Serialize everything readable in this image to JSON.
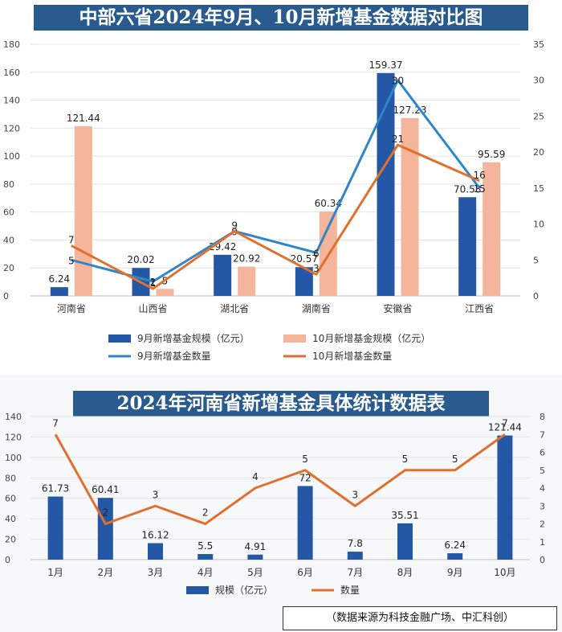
{
  "title1": "中部六省2024年9月、10月新增基金数据对比图",
  "title2": "2024年河南省新增基金具体统计数据表",
  "source_note": "（数据来源为科技金融广场、中汇科创）",
  "colors": {
    "bar_sep": "#2458a6",
    "bar_oct": "#f4b59a",
    "line_sep": "#2e86c8",
    "line_oct": "#e0702f",
    "title_bg": "#2a5b8f"
  },
  "chart_data": [
    {
      "type": "bar",
      "title": "中部六省2024年9月、10月新增基金数据对比图",
      "categories": [
        "河南省",
        "山西省",
        "湖北省",
        "湖南省",
        "安徽省",
        "江西省"
      ],
      "y_ticks": [
        "0",
        "20",
        "40",
        "60",
        "80",
        "100",
        "120",
        "140",
        "160",
        "180"
      ],
      "y2_ticks": [
        "0",
        "5",
        "10",
        "15",
        "20",
        "25",
        "30",
        "35"
      ],
      "ylim": [
        0,
        180
      ],
      "y2lim": [
        0,
        35
      ],
      "series": [
        {
          "name": "9月新增基金规模（亿元）",
          "kind": "bar",
          "axis": "left",
          "values": [
            6.24,
            20.02,
            29.42,
            20.57,
            159.37,
            70.58
          ],
          "labels": [
            "6.24",
            "20.02",
            "29.42",
            "20.57",
            "159.37",
            "70.58"
          ]
        },
        {
          "name": "10月新增基金规模（亿元）",
          "kind": "bar",
          "axis": "left",
          "values": [
            121.44,
            5,
            20.92,
            60.34,
            127.23,
            95.59
          ],
          "labels": [
            "121.44",
            "5",
            "20.92",
            "60.34",
            "127.23",
            "95.59"
          ]
        },
        {
          "name": "9月新增基金数量",
          "kind": "line",
          "axis": "right",
          "values": [
            5,
            2,
            9,
            6,
            30,
            15
          ],
          "labels": [
            "5",
            "2",
            "9",
            "6",
            "30",
            "15"
          ]
        },
        {
          "name": "10月新增基金数量",
          "kind": "line",
          "axis": "right",
          "values": [
            7,
            1,
            9,
            3,
            21,
            16
          ],
          "labels": [
            "7",
            "1",
            "9",
            "3",
            "21",
            "16"
          ]
        }
      ],
      "legend_placement": "bottom"
    },
    {
      "type": "bar",
      "title": "2024年河南省新增基金具体统计数据表",
      "categories": [
        "1月",
        "2月",
        "3月",
        "4月",
        "5月",
        "6月",
        "7月",
        "8月",
        "9月",
        "10月"
      ],
      "y_ticks": [
        "0",
        "20",
        "40",
        "60",
        "80",
        "100",
        "120",
        "140"
      ],
      "y2_ticks": [
        "0",
        "1",
        "2",
        "3",
        "4",
        "5",
        "6",
        "7",
        "8"
      ],
      "ylim": [
        0,
        140
      ],
      "y2lim": [
        0,
        8
      ],
      "series": [
        {
          "name": "规模（亿元）",
          "kind": "bar",
          "axis": "left",
          "values": [
            61.73,
            60.41,
            16.12,
            5.5,
            4.91,
            72,
            7.8,
            35.51,
            6.24,
            121.44
          ],
          "labels": [
            "61.73",
            "60.41",
            "16.12",
            "5.5",
            "4.91",
            "72",
            "7.8",
            "35.51",
            "6.24",
            "121.44"
          ]
        },
        {
          "name": "数量",
          "kind": "line",
          "axis": "right",
          "values": [
            7,
            2,
            3,
            2,
            4,
            5,
            3,
            5,
            5,
            7
          ],
          "labels": [
            "7",
            "2",
            "3",
            "2",
            "4",
            "5",
            "3",
            "5",
            "5",
            "7"
          ]
        }
      ],
      "legend_placement": "bottom"
    }
  ]
}
